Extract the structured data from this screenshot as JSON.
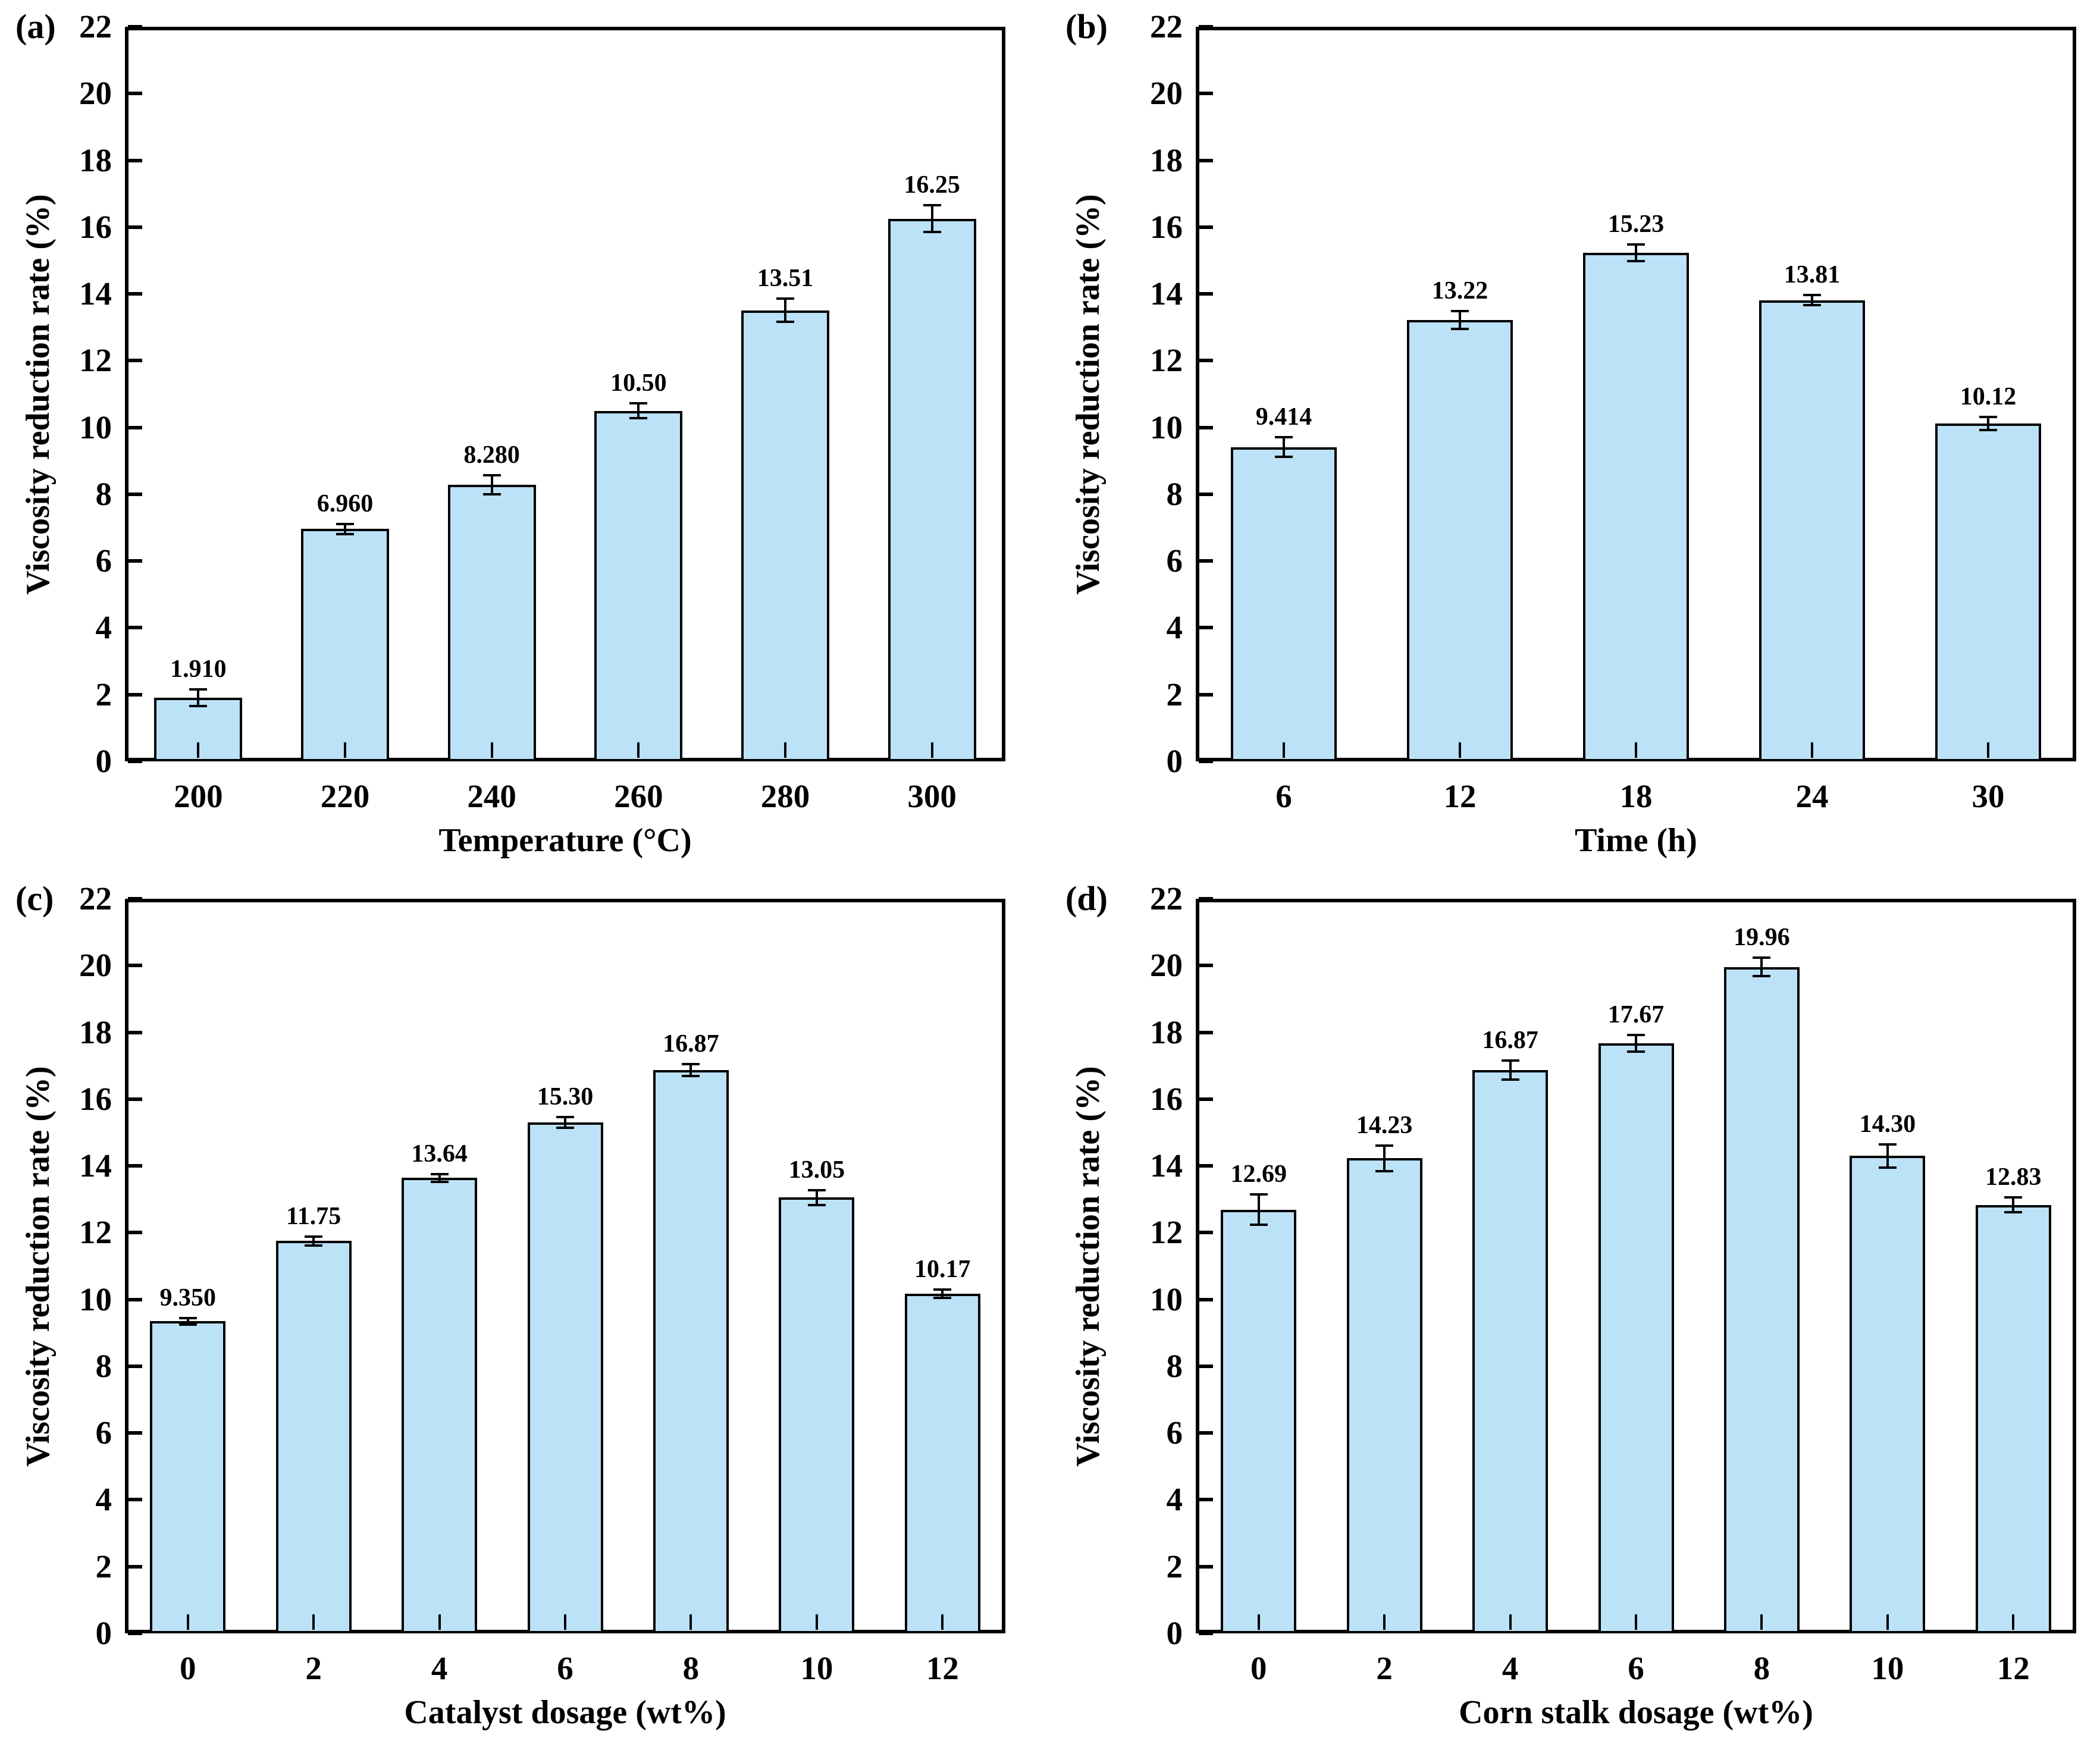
{
  "figure": {
    "background": "#ffffff",
    "axis_color": "#000000",
    "bar_fill": "#BCE2F8",
    "bar_border": "#000000",
    "shared_ylabel": "Viscosity reduction rate (%)"
  },
  "chart_data": [
    {
      "type": "bar",
      "panel": "(a)",
      "ylabel": "Viscosity reduction rate (%)",
      "xlabel": "Temperature (°C)",
      "ylim": [
        0,
        22
      ],
      "ytick_step": 2,
      "yticks": [
        "0",
        "2",
        "4",
        "6",
        "8",
        "10",
        "12",
        "14",
        "16",
        "18",
        "20",
        "22"
      ],
      "categories": [
        "200",
        "220",
        "240",
        "260",
        "280",
        "300"
      ],
      "values": [
        1.91,
        6.96,
        8.28,
        10.5,
        13.51,
        16.25
      ],
      "value_labels": [
        "1.910",
        "6.960",
        "8.280",
        "10.50",
        "13.51",
        "16.25"
      ],
      "errors": [
        0.25,
        0.15,
        0.28,
        0.22,
        0.35,
        0.4
      ],
      "grid": false,
      "legend": null
    },
    {
      "type": "bar",
      "panel": "(b)",
      "ylabel": "Viscosity reduction rate (%)",
      "xlabel": "Time (h)",
      "ylim": [
        0,
        22
      ],
      "ytick_step": 2,
      "yticks": [
        "0",
        "2",
        "4",
        "6",
        "8",
        "10",
        "12",
        "14",
        "16",
        "18",
        "20",
        "22"
      ],
      "categories": [
        "6",
        "12",
        "18",
        "24",
        "30"
      ],
      "values": [
        9.414,
        13.22,
        15.23,
        13.81,
        10.12
      ],
      "value_labels": [
        "9.414",
        "13.22",
        "15.23",
        "13.81",
        "10.12"
      ],
      "errors": [
        0.3,
        0.27,
        0.25,
        0.15,
        0.2
      ],
      "grid": false,
      "legend": null
    },
    {
      "type": "bar",
      "panel": "(c)",
      "ylabel": "Viscosity reduction rate (%)",
      "xlabel": "Catalyst dosage (wt%)",
      "ylim": [
        0,
        22
      ],
      "ytick_step": 2,
      "yticks": [
        "0",
        "2",
        "4",
        "6",
        "8",
        "10",
        "12",
        "14",
        "16",
        "18",
        "20",
        "22"
      ],
      "categories": [
        "0",
        "2",
        "4",
        "6",
        "8",
        "10",
        "12"
      ],
      "values": [
        9.35,
        11.75,
        13.64,
        15.3,
        16.87,
        13.05,
        10.17
      ],
      "value_labels": [
        "9.350",
        "11.75",
        "13.64",
        "15.30",
        "16.87",
        "13.05",
        "10.17"
      ],
      "errors": [
        0.1,
        0.14,
        0.12,
        0.16,
        0.18,
        0.22,
        0.12
      ],
      "grid": false,
      "legend": null
    },
    {
      "type": "bar",
      "panel": "(d)",
      "ylabel": "Viscosity reduction rate (%)",
      "xlabel": "Corn stalk dosage (wt%)",
      "ylim": [
        0,
        22
      ],
      "ytick_step": 2,
      "yticks": [
        "0",
        "2",
        "4",
        "6",
        "8",
        "10",
        "12",
        "14",
        "16",
        "18",
        "20",
        "22"
      ],
      "categories": [
        "0",
        "2",
        "4",
        "6",
        "8",
        "10",
        "12"
      ],
      "values": [
        12.69,
        14.23,
        16.87,
        17.67,
        19.96,
        14.3,
        12.83
      ],
      "value_labels": [
        "12.69",
        "14.23",
        "16.87",
        "17.67",
        "19.96",
        "14.30",
        "12.83"
      ],
      "errors": [
        0.45,
        0.38,
        0.28,
        0.25,
        0.28,
        0.35,
        0.22
      ],
      "grid": false,
      "legend": null
    }
  ]
}
